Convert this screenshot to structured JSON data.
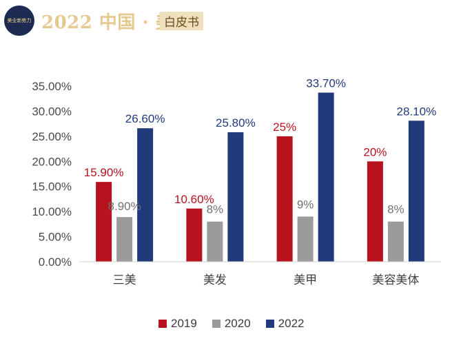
{
  "header": {
    "logo_text": "美业新势力",
    "title": "2022 中国 · 美业",
    "badge": "白皮书"
  },
  "colors": {
    "2019": "#b8121e",
    "2020": "#9b9b9b",
    "2022": "#213a7c",
    "axis": "#d0d0d0"
  },
  "chart_data": {
    "type": "bar",
    "title": "",
    "xlabel": "",
    "ylabel": "",
    "categories": [
      "三美",
      "美发",
      "美甲",
      "美容美体"
    ],
    "ylim": [
      0,
      35
    ],
    "yticks": [
      "0.00%",
      "5.00%",
      "10.00%",
      "15.00%",
      "20.00%",
      "25.00%",
      "30.00%",
      "35.00%"
    ],
    "legend_position": "bottom",
    "grid": false,
    "series": [
      {
        "name": "2019",
        "values": [
          15.9,
          10.6,
          25,
          20
        ],
        "labels": [
          "15.90%",
          "10.60%",
          "25%",
          "20%"
        ]
      },
      {
        "name": "2020",
        "values": [
          8.9,
          8,
          9,
          8
        ],
        "labels": [
          "8.90%",
          "8%",
          "9%",
          "8%"
        ]
      },
      {
        "name": "2022",
        "values": [
          26.6,
          25.8,
          33.7,
          28.1
        ],
        "labels": [
          "26.60%",
          "25.80%",
          "33.70%",
          "28.10%"
        ]
      }
    ]
  }
}
